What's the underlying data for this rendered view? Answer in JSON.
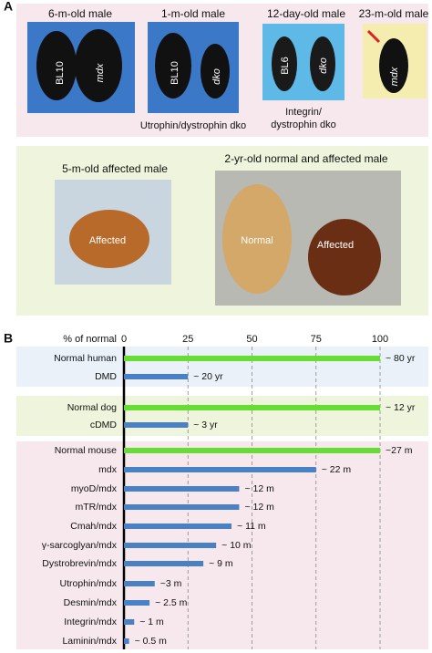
{
  "panel_a": {
    "label": "A",
    "mouse_photos": [
      {
        "title": "6-m-old male",
        "labels": [
          "BL10",
          "mdx"
        ]
      },
      {
        "title": "1-m-old male",
        "labels": [
          "BL10",
          "dko"
        ],
        "caption_lines": [
          "Utrophin/dystrophin dko"
        ]
      },
      {
        "title": "12-day-old male",
        "labels": [
          "BL6",
          "dko"
        ],
        "caption_lines": [
          "Integrin/",
          "dystrophin dko"
        ]
      },
      {
        "title": "23-m-old male",
        "labels": [
          "mdx"
        ]
      }
    ],
    "dog_photos": [
      {
        "title": "5-m-old affected male",
        "labels": [
          "Affected"
        ]
      },
      {
        "title": "2-yr-old normal and affected male",
        "labels": [
          "Normal",
          "Affected"
        ]
      }
    ]
  },
  "panel_b_label": "B",
  "chart_data": {
    "type": "bar",
    "orientation": "horizontal",
    "x_label": "% of normal",
    "categories": [
      "Normal human",
      "DMD",
      "Normal dog",
      "cDMD",
      "Normal mouse",
      "mdx",
      "myoD/mdx",
      "mTR/mdx",
      "Cmah/mdx",
      "γ-sarcoglyan/mdx",
      "Dystrobrevin/mdx",
      "Utrophin/mdx",
      "Desmin/mdx",
      "Integrin/mdx",
      "Laminin/mdx"
    ],
    "values": [
      100,
      25,
      100,
      25,
      100,
      75,
      45,
      45,
      42,
      36,
      31,
      12,
      10,
      4,
      2
    ],
    "value_labels": [
      "~ 80 yr",
      "~ 20 yr",
      "~ 12 yr",
      "~ 3 yr",
      "~27 m",
      "~ 22 m",
      "~ 12 m",
      "~ 12 m",
      "~ 11 m",
      "~ 10 m",
      "~ 9 m",
      "~3 m",
      "~ 2.5 m",
      "~ 1 m",
      "~ 0.5 m"
    ],
    "colors": [
      "#66dd33",
      "#4a80c4",
      "#66dd33",
      "#4a80c4",
      "#66dd33",
      "#4a80c4",
      "#4a80c4",
      "#4a80c4",
      "#4a80c4",
      "#4a80c4",
      "#4a80c4",
      "#4a80c4",
      "#4a80c4",
      "#4a80c4",
      "#4a80c4"
    ],
    "xlim": [
      0,
      100
    ],
    "xticks": [
      0,
      25,
      50,
      75,
      100
    ],
    "grid": true
  }
}
